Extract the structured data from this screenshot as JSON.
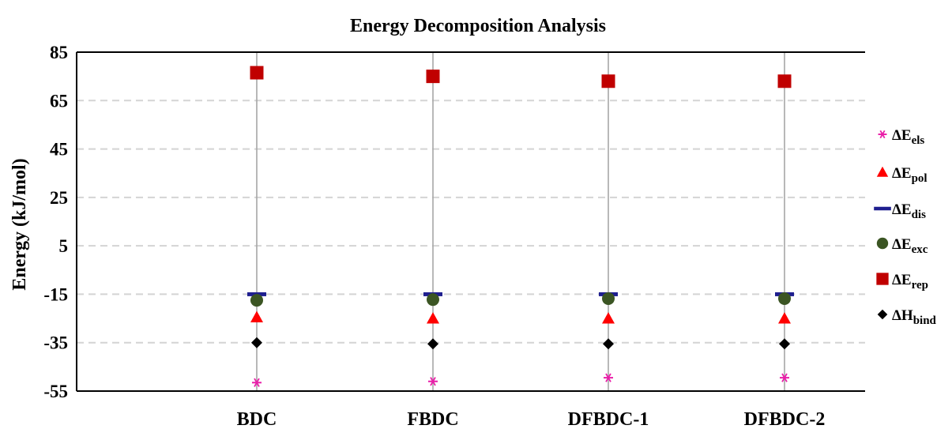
{
  "chart_data": {
    "type": "scatter",
    "title": "Energy Decomposition Analysis",
    "ylabel": "Energy (kJ/mol)",
    "xlabel": "",
    "categories": [
      "BDC",
      "FBDC",
      "DFBDC-1",
      "DFBDC-2"
    ],
    "ylim": [
      -55,
      85
    ],
    "yticks": [
      85,
      65,
      45,
      25,
      5,
      -15,
      -35,
      -55
    ],
    "grid": "horizontal dashed, vertical solid at categories",
    "legend_position": "right",
    "series": [
      {
        "name": "ΔE",
        "sub": "els",
        "marker": "asterisk",
        "color": "#e91ea8",
        "values": [
          -51.5,
          -51.0,
          -49.5,
          -49.5
        ]
      },
      {
        "name": "ΔE",
        "sub": "pol",
        "marker": "triangle",
        "color": "#ff0000",
        "values": [
          -24.5,
          -25.0,
          -25.0,
          -25.0
        ]
      },
      {
        "name": "ΔE",
        "sub": "dis",
        "marker": "dash",
        "color": "#1f1f8f",
        "values": [
          -15.0,
          -15.0,
          -15.0,
          -15.0
        ]
      },
      {
        "name": "ΔE",
        "sub": "exc",
        "marker": "circle",
        "color": "#3b5523",
        "values": [
          -17.5,
          -17.2,
          -16.8,
          -16.8
        ]
      },
      {
        "name": "ΔE",
        "sub": "rep",
        "marker": "square",
        "color": "#c00000",
        "values": [
          76.5,
          75.0,
          73.0,
          73.0
        ]
      },
      {
        "name": "ΔH",
        "sub": "bind",
        "marker": "diamond",
        "color": "#000000",
        "values": [
          -35.0,
          -35.5,
          -35.5,
          -35.5
        ]
      }
    ]
  }
}
